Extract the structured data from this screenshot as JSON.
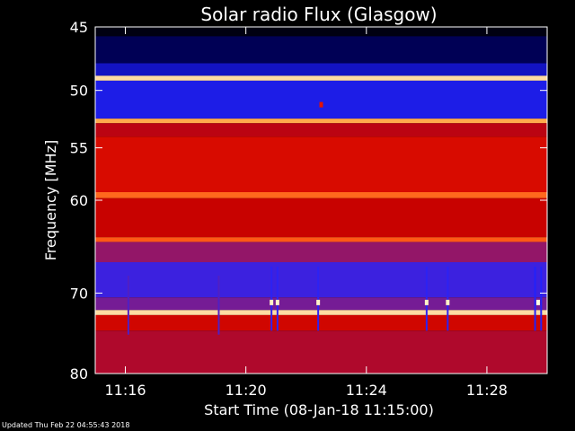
{
  "chart_data": {
    "type": "heatmap",
    "title": "Solar radio Flux (Glasgow)",
    "xlabel": "Start Time (08-Jan-18 11:15:00)",
    "ylabel": "Frequency [MHz]",
    "x_unit": "minutes after 11:15:00",
    "xlim": [
      0,
      15.0
    ],
    "ylim": [
      45,
      80
    ],
    "y_scale": "log",
    "y_inverted": true,
    "x_ticks": [
      {
        "label": "11:16",
        "value": 1
      },
      {
        "label": "11:20",
        "value": 5
      },
      {
        "label": "11:24",
        "value": 9
      },
      {
        "label": "11:28",
        "value": 13
      }
    ],
    "y_ticks": [
      45,
      50,
      55,
      60,
      70,
      80
    ],
    "colormap": [
      "#000000",
      "#00007a",
      "#2323ff",
      "#8a1a7a",
      "#c40000",
      "#ff2000",
      "#ff9a30",
      "#ffffe0"
    ],
    "background_bands": [
      {
        "from": 45,
        "to": 45.7,
        "level": 0.02
      },
      {
        "from": 45.7,
        "to": 47.8,
        "level": 0.1
      },
      {
        "from": 47.8,
        "to": 48.8,
        "level": 0.22
      },
      {
        "from": 48.8,
        "to": 49.2,
        "level": 0.95
      },
      {
        "from": 49.2,
        "to": 52.4,
        "level": 0.26
      },
      {
        "from": 52.4,
        "to": 52.8,
        "level": 0.88
      },
      {
        "from": 52.8,
        "to": 54.0,
        "level": 0.55
      },
      {
        "from": 54.0,
        "to": 59.2,
        "level": 0.62
      },
      {
        "from": 59.2,
        "to": 59.8,
        "level": 0.8
      },
      {
        "from": 59.8,
        "to": 63.8,
        "level": 0.58
      },
      {
        "from": 63.8,
        "to": 64.3,
        "level": 0.78
      },
      {
        "from": 64.3,
        "to": 66.5,
        "level": 0.45
      },
      {
        "from": 66.5,
        "to": 70.5,
        "level": 0.32
      },
      {
        "from": 70.5,
        "to": 72.0,
        "level": 0.4
      },
      {
        "from": 72.0,
        "to": 72.6,
        "level": 0.95
      },
      {
        "from": 72.6,
        "to": 74.5,
        "level": 0.6
      },
      {
        "from": 74.5,
        "to": 80.0,
        "level": 0.52
      }
    ],
    "bursts": [
      {
        "time": 1.1,
        "from": 68,
        "to": 75,
        "level": 0.35
      },
      {
        "time": 4.1,
        "from": 68,
        "to": 75,
        "level": 0.35
      },
      {
        "time": 5.85,
        "from": 67,
        "to": 74.5,
        "level": 0.3
      },
      {
        "time": 6.05,
        "from": 67,
        "to": 74.5,
        "level": 0.3
      },
      {
        "time": 7.4,
        "from": 67,
        "to": 74.5,
        "level": 0.3
      },
      {
        "time": 11.0,
        "from": 67,
        "to": 74.5,
        "level": 0.3
      },
      {
        "time": 11.7,
        "from": 67,
        "to": 74.5,
        "level": 0.3
      },
      {
        "time": 14.6,
        "from": 67,
        "to": 74.5,
        "level": 0.28
      },
      {
        "time": 14.8,
        "from": 67,
        "to": 74.5,
        "level": 0.28
      }
    ],
    "hot_spots": [
      {
        "time": 5.85,
        "freq": 71.1,
        "level": 0.98
      },
      {
        "time": 6.05,
        "freq": 71.1,
        "level": 0.98
      },
      {
        "time": 7.4,
        "freq": 71.1,
        "level": 0.98
      },
      {
        "time": 11.0,
        "freq": 71.1,
        "level": 0.98
      },
      {
        "time": 11.7,
        "freq": 71.1,
        "level": 0.98
      },
      {
        "time": 14.7,
        "freq": 71.1,
        "level": 1.0
      },
      {
        "time": 7.5,
        "freq": 51.2,
        "level": 0.65
      }
    ]
  },
  "footer": {
    "updated": "Updated Thu Feb 22 04:55:43 2018"
  }
}
